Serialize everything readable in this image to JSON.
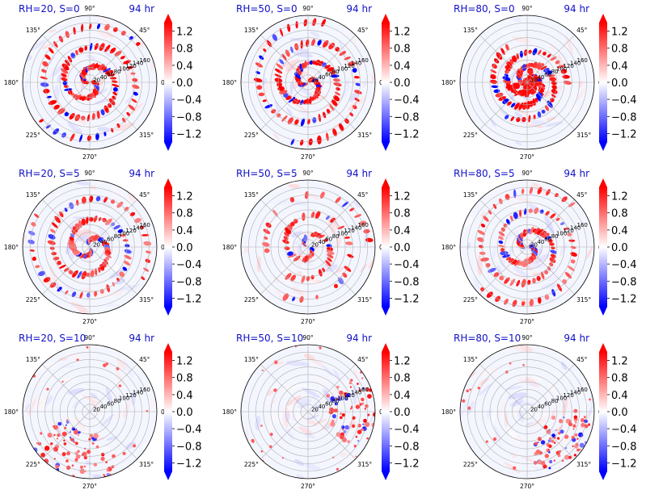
{
  "chart_data": {
    "type": "polar-contour",
    "layout": "3x3 grid",
    "time_label": "94 hr",
    "angle_ticks": [
      "0°",
      "45°",
      "90°",
      "135°",
      "180°",
      "225°",
      "270°",
      "315°"
    ],
    "angle_values": [
      0,
      45,
      90,
      135,
      180,
      225,
      270,
      315
    ],
    "radial_ticks": [
      "20",
      "40",
      "60",
      "80",
      "100",
      "120",
      "140",
      "160"
    ],
    "radial_values": [
      20,
      40,
      60,
      80,
      100,
      120,
      140,
      160
    ],
    "rlim": [
      0,
      180
    ],
    "colormap": "bwr",
    "colorbar": {
      "ticks": [
        "1.2",
        "0.8",
        "0.4",
        "0.0",
        "−0.4",
        "−0.8",
        "−1.2"
      ],
      "tick_values": [
        1.2,
        0.8,
        0.4,
        0.0,
        -0.4,
        -0.8,
        -1.2
      ],
      "range": [
        -1.4,
        1.4
      ],
      "extend": "both"
    },
    "colors": {
      "positive": "#ff0000",
      "negative": "#0000ff",
      "neutral": "#ffffff",
      "title": "#1010c8"
    },
    "panels": [
      {
        "title": "RH=20, S=0",
        "time": "94 hr",
        "pattern": "strong-spiral"
      },
      {
        "title": "RH=50, S=0",
        "time": "94 hr",
        "pattern": "strong-spiral"
      },
      {
        "title": "RH=80, S=0",
        "time": "94 hr",
        "pattern": "strong-core"
      },
      {
        "title": "RH=20, S=5",
        "time": "94 hr",
        "pattern": "spiral"
      },
      {
        "title": "RH=50, S=5",
        "time": "94 hr",
        "pattern": "spiral-broken"
      },
      {
        "title": "RH=80, S=5",
        "time": "94 hr",
        "pattern": "spiral"
      },
      {
        "title": "RH=20, S=10",
        "time": "94 hr",
        "pattern": "sparse-south"
      },
      {
        "title": "RH=50, S=10",
        "time": "94 hr",
        "pattern": "sparse-east"
      },
      {
        "title": "RH=80, S=10",
        "time": "94 hr",
        "pattern": "sparse-southeast"
      }
    ]
  }
}
